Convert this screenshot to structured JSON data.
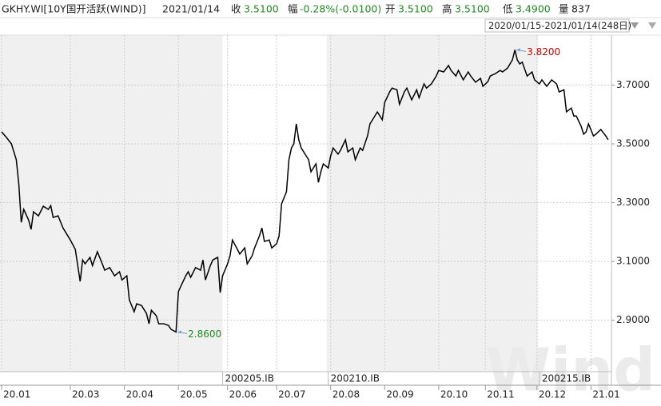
{
  "header": {
    "symbol": "GKHY.WI[10Y国开活跃(WIND)]",
    "date": "2021/01/14",
    "fields": [
      {
        "label": "收",
        "value": "3.5100",
        "color": "#1f8a1f"
      },
      {
        "label": "幅",
        "value": "-0.28%(-0.0100)",
        "color": "#1f8a1f"
      },
      {
        "label": "开",
        "value": "3.5100",
        "color": "#1f8a1f"
      },
      {
        "label": "高",
        "value": "3.5100",
        "color": "#1f8a1f"
      },
      {
        "label": "低",
        "value": "3.4900",
        "color": "#1f8a1f"
      },
      {
        "label": "量",
        "value": "837",
        "color": "#222222"
      }
    ]
  },
  "toolbar": {
    "range": "2020/01/15-2021/01/14(248日)"
  },
  "watermark": "Wind",
  "chart_data": {
    "type": "line",
    "xlim": [
      0,
      248
    ],
    "ylim": [
      2.725,
      3.87
    ],
    "xticks": [
      {
        "value": 0,
        "label": "20.01"
      },
      {
        "value": 28,
        "label": "20.03"
      },
      {
        "value": 50,
        "label": "20.04"
      },
      {
        "value": 72,
        "label": "20.05"
      },
      {
        "value": 92,
        "label": "20.06"
      },
      {
        "value": 112,
        "label": "20.07"
      },
      {
        "value": 134,
        "label": "20.08"
      },
      {
        "value": 156,
        "label": "20.09"
      },
      {
        "value": 178,
        "label": "20.10"
      },
      {
        "value": 197,
        "label": "20.11"
      },
      {
        "value": 218,
        "label": "20.12"
      },
      {
        "value": 240,
        "label": "21.01"
      }
    ],
    "yticks": [
      {
        "value": 2.9,
        "label": "2.9000"
      },
      {
        "value": 3.1,
        "label": "3.1000"
      },
      {
        "value": 3.3,
        "label": "3.3000"
      },
      {
        "value": 3.5,
        "label": "3.5000"
      },
      {
        "value": 3.7,
        "label": "3.7000"
      }
    ],
    "grid": true,
    "contracts": [
      {
        "value": 90,
        "label": "200205.IB"
      },
      {
        "value": 133,
        "label": "200210.IB"
      },
      {
        "value": 219,
        "label": "200215.IB"
      }
    ],
    "annotations": [
      {
        "x": 71,
        "y": 2.86,
        "label": "2.8600",
        "color": "#1f8a1f"
      },
      {
        "x": 209,
        "y": 3.82,
        "label": "3.8200",
        "color": "#c00000"
      }
    ],
    "series": [
      {
        "color": "#000000",
        "x": [
          0,
          2,
          4,
          6,
          7,
          8,
          9,
          11,
          12,
          13,
          15,
          17,
          19,
          20,
          21,
          23,
          25,
          28,
          30,
          32,
          33,
          34,
          36,
          37,
          39,
          41,
          42,
          44,
          46,
          48,
          49,
          51,
          52,
          54,
          55,
          57,
          59,
          60,
          61,
          63,
          64,
          66,
          68,
          69,
          71,
          72,
          73,
          75,
          76,
          77,
          79,
          81,
          82,
          83,
          85,
          86,
          88,
          89,
          90,
          92,
          93,
          94,
          96,
          97,
          99,
          100,
          102,
          103,
          105,
          106,
          107,
          109,
          110,
          112,
          113,
          114,
          116,
          117,
          118,
          119,
          120,
          121,
          122,
          123,
          125,
          126,
          128,
          129,
          130,
          131,
          133,
          134,
          135,
          137,
          138,
          140,
          141,
          143,
          144,
          146,
          147,
          149,
          150,
          152,
          153,
          155,
          156,
          158,
          159,
          161,
          162,
          164,
          165,
          167,
          169,
          170,
          172,
          173,
          175,
          177,
          178,
          180,
          182,
          183,
          185,
          186,
          188,
          190,
          191,
          193,
          195,
          196,
          198,
          199,
          201,
          203,
          204,
          206,
          208,
          209,
          210,
          211,
          212,
          214,
          216,
          217,
          219,
          220,
          222,
          224,
          226,
          227,
          229,
          230,
          232,
          233,
          234,
          236,
          237,
          238,
          239,
          241,
          242,
          244,
          246,
          247
        ],
        "values": [
          3.541,
          3.522,
          3.5,
          3.446,
          3.364,
          3.233,
          3.277,
          3.241,
          3.209,
          3.269,
          3.255,
          3.288,
          3.277,
          3.29,
          3.25,
          3.255,
          3.214,
          3.173,
          3.141,
          3.032,
          3.105,
          3.092,
          3.114,
          3.086,
          3.133,
          3.092,
          3.07,
          3.079,
          3.051,
          3.065,
          3.037,
          3.051,
          2.969,
          2.929,
          2.956,
          2.95,
          2.923,
          2.888,
          2.934,
          2.915,
          2.888,
          2.888,
          2.882,
          2.869,
          2.86,
          2.997,
          3.016,
          3.051,
          3.065,
          3.046,
          3.079,
          3.07,
          3.105,
          3.037,
          3.086,
          3.105,
          3.114,
          2.994,
          3.051,
          3.092,
          3.119,
          3.173,
          3.141,
          3.125,
          3.146,
          3.092,
          3.119,
          3.146,
          3.187,
          3.214,
          3.168,
          3.173,
          3.146,
          3.16,
          3.187,
          3.296,
          3.337,
          3.446,
          3.486,
          3.5,
          3.568,
          3.514,
          3.486,
          3.473,
          3.446,
          3.405,
          3.432,
          3.369,
          3.405,
          3.432,
          3.418,
          3.459,
          3.486,
          3.465,
          3.478,
          3.514,
          3.473,
          3.486,
          3.446,
          3.486,
          3.478,
          3.527,
          3.568,
          3.595,
          3.609,
          3.582,
          3.641,
          3.677,
          3.69,
          3.684,
          3.635,
          3.677,
          3.69,
          3.65,
          3.684,
          3.657,
          3.704,
          3.69,
          3.704,
          3.731,
          3.75,
          3.745,
          3.767,
          3.75,
          3.731,
          3.75,
          3.718,
          3.745,
          3.731,
          3.71,
          3.723,
          3.696,
          3.712,
          3.731,
          3.739,
          3.75,
          3.745,
          3.758,
          3.786,
          3.82,
          3.786,
          3.772,
          3.778,
          3.731,
          3.745,
          3.718,
          3.704,
          3.718,
          3.696,
          3.718,
          3.704,
          3.677,
          3.684,
          3.609,
          3.622,
          3.595,
          3.595,
          3.56,
          3.533,
          3.541,
          3.568,
          3.527,
          3.533,
          3.549,
          3.527,
          3.514
        ]
      }
    ]
  }
}
